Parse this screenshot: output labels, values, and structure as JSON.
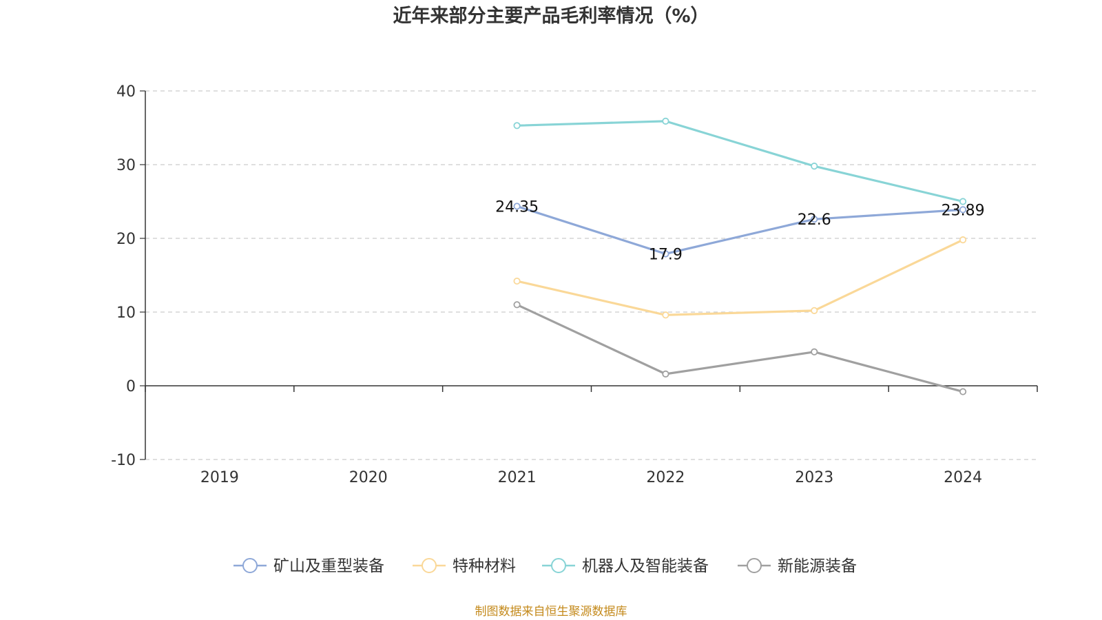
{
  "chart_data": {
    "type": "line",
    "title": "近年来部分主要产品毛利率情况（%）",
    "xlabel": "",
    "ylabel": "",
    "categories": [
      "2019",
      "2020",
      "2021",
      "2022",
      "2023",
      "2024"
    ],
    "ylim": [
      -10,
      40
    ],
    "yticks": [
      -10,
      0,
      10,
      20,
      30,
      40
    ],
    "grid": true,
    "legend_position": "bottom",
    "series": [
      {
        "name": "矿山及重型装备",
        "color": "#8ea8d8",
        "values": [
          null,
          null,
          24.35,
          17.9,
          22.6,
          23.89
        ],
        "labels": [
          null,
          null,
          "24.35",
          "17.9",
          "22.6",
          "23.89"
        ]
      },
      {
        "name": "特种材料",
        "color": "#fad898",
        "values": [
          null,
          null,
          14.2,
          9.6,
          10.2,
          19.8
        ],
        "labels": [
          null,
          null,
          null,
          null,
          null,
          null
        ]
      },
      {
        "name": "机器人及智能装备",
        "color": "#88d4d6",
        "values": [
          null,
          null,
          35.3,
          35.9,
          29.8,
          25.0
        ],
        "labels": [
          null,
          null,
          null,
          null,
          null,
          null
        ]
      },
      {
        "name": "新能源装备",
        "color": "#a0a0a0",
        "values": [
          null,
          null,
          11.0,
          1.6,
          4.6,
          -0.8
        ],
        "labels": [
          null,
          null,
          null,
          null,
          null,
          null
        ]
      }
    ],
    "source": "制图数据来自恒生聚源数据库"
  }
}
